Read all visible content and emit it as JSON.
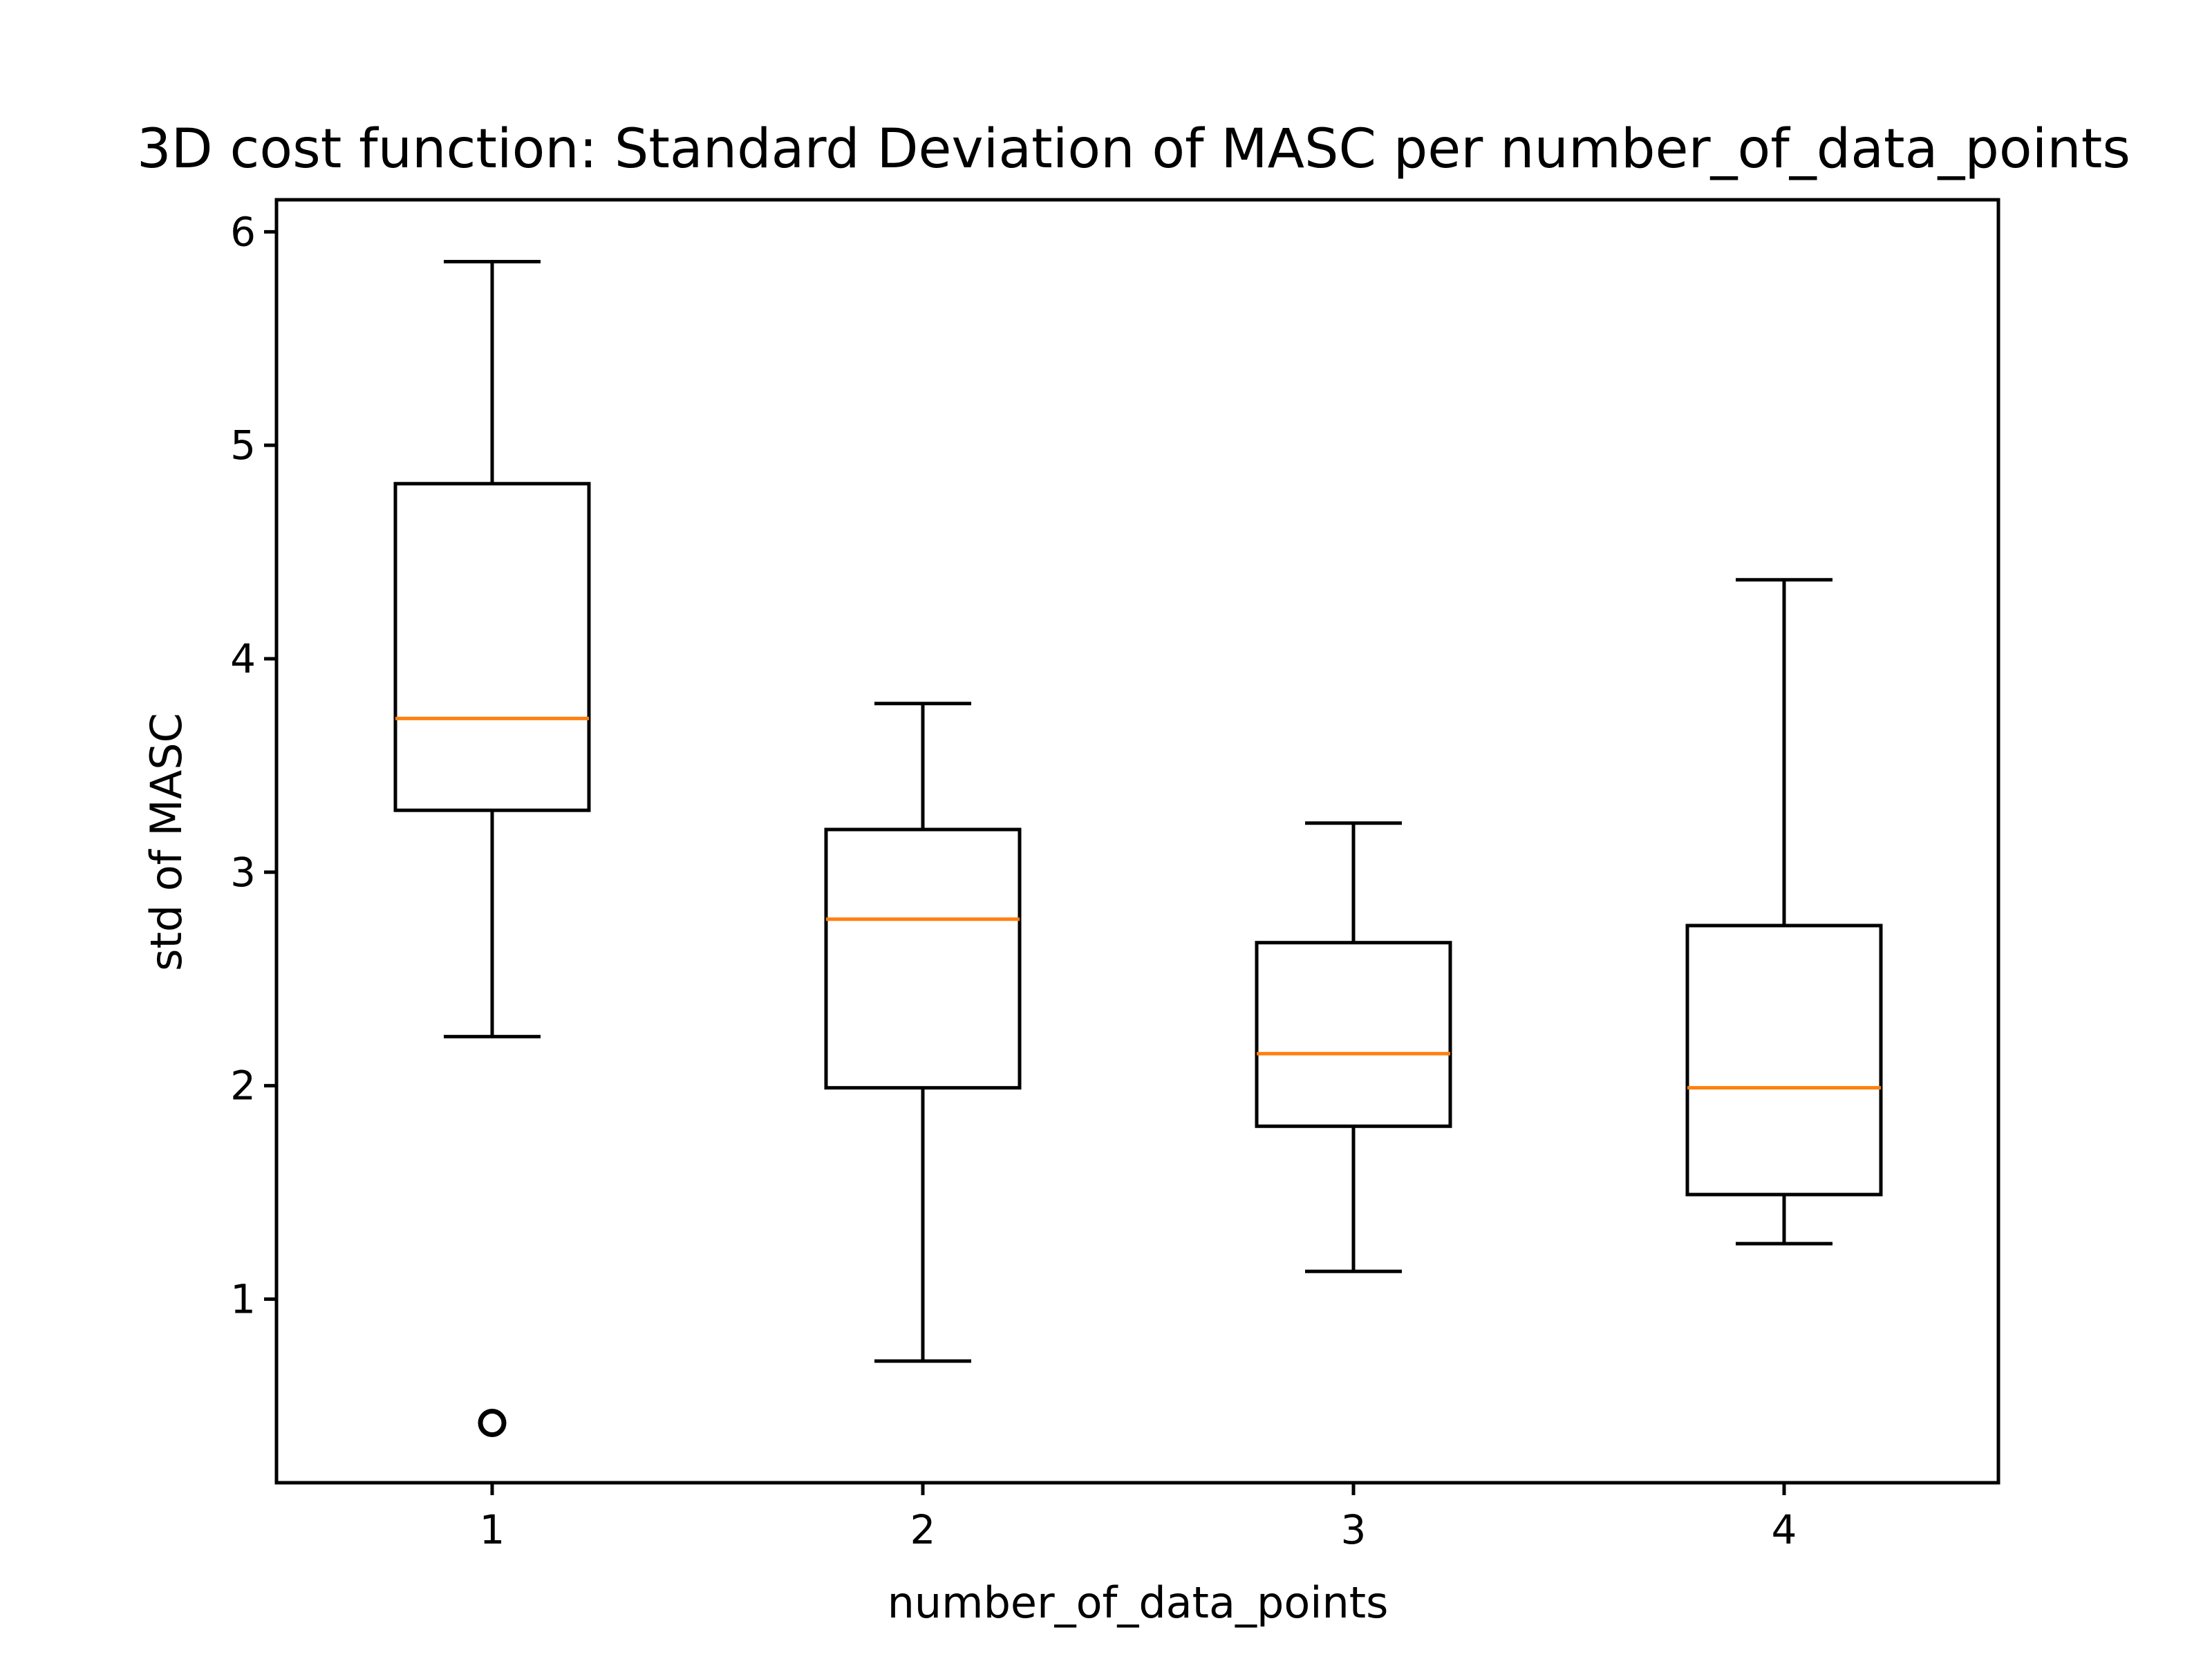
{
  "chart_data": {
    "type": "box",
    "title": "3D cost function: Standard Deviation of MASC per number_of_data_points",
    "xlabel": "number_of_data_points",
    "ylabel": "std of MASC",
    "categories": [
      "1",
      "2",
      "3",
      "4"
    ],
    "x_ticks": [
      "1",
      "2",
      "3",
      "4"
    ],
    "y_ticks": [
      "1",
      "2",
      "3",
      "4",
      "5",
      "6"
    ],
    "ylim": [
      0.14,
      6.15
    ],
    "grid": false,
    "colors": {
      "box": "#000000",
      "median": "#ff7f0e",
      "background": "#ffffff"
    },
    "boxes": [
      {
        "category": "1",
        "whisker_low": 2.23,
        "q1": 3.29,
        "median": 3.72,
        "q3": 4.82,
        "whisker_high": 5.86,
        "outliers": [
          0.42
        ]
      },
      {
        "category": "2",
        "whisker_low": 0.71,
        "q1": 1.99,
        "median": 2.78,
        "q3": 3.2,
        "whisker_high": 3.79,
        "outliers": []
      },
      {
        "category": "3",
        "whisker_low": 1.13,
        "q1": 1.81,
        "median": 2.15,
        "q3": 2.67,
        "whisker_high": 3.23,
        "outliers": []
      },
      {
        "category": "4",
        "whisker_low": 1.26,
        "q1": 1.49,
        "median": 1.99,
        "q3": 2.75,
        "whisker_high": 4.37,
        "outliers": []
      }
    ]
  }
}
